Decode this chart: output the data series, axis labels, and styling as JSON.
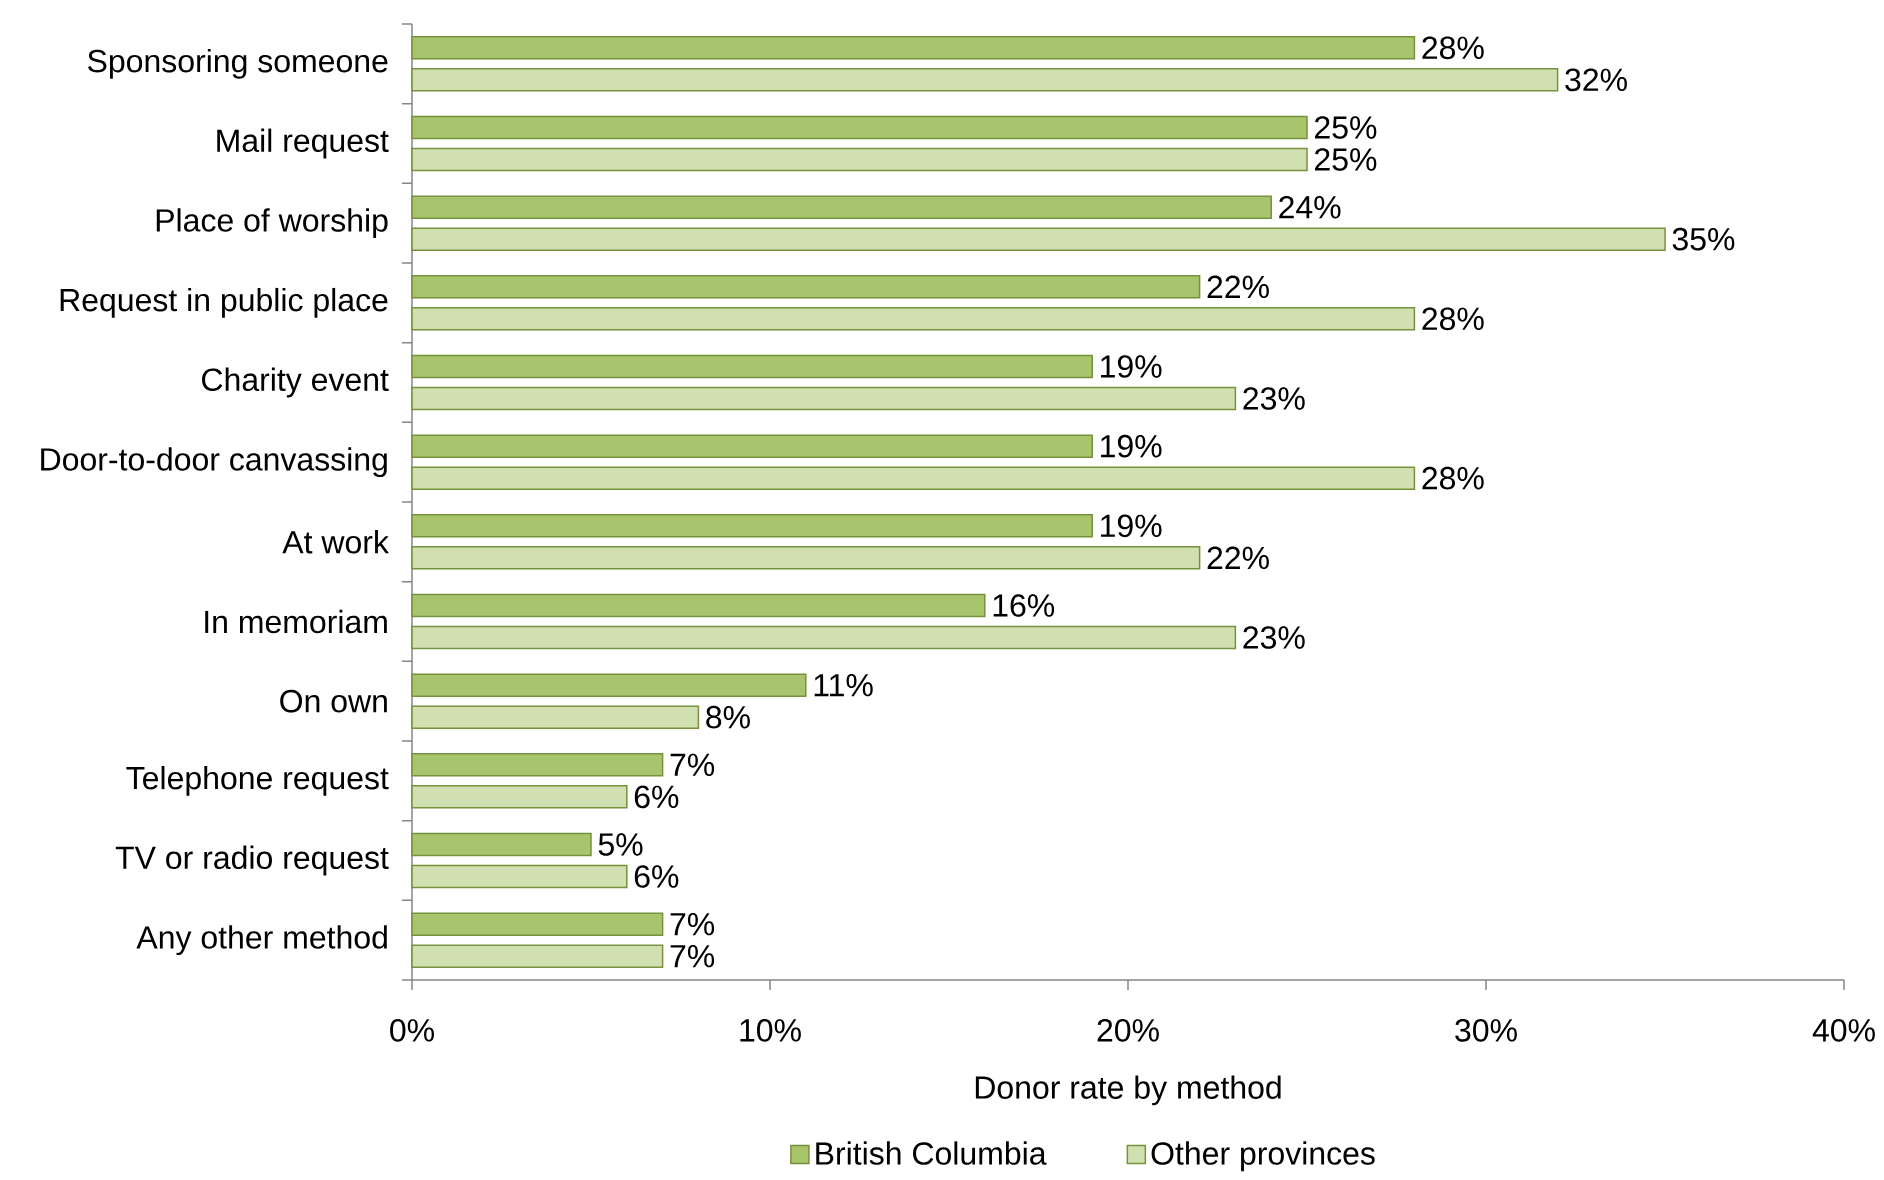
{
  "chart_data": {
    "type": "bar",
    "orientation": "horizontal",
    "xlabel": "Donor rate by method",
    "categories": [
      "Sponsoring someone",
      "Mail request",
      "Place of worship",
      "Request in public place",
      "Charity event",
      "Door-to-door canvassing",
      "At work",
      "In memoriam",
      "On own",
      "Telephone request",
      "TV or radio request",
      "Any other method"
    ],
    "series": [
      {
        "name": "British Columbia",
        "color": "#a8c46c",
        "values": [
          28,
          25,
          24,
          22,
          19,
          19,
          19,
          16,
          11,
          7,
          5,
          7
        ],
        "value_labels": [
          "28%",
          "25%",
          "24%",
          "22%",
          "19%",
          "19%",
          "19%",
          "16%",
          "11%",
          "7%",
          "5%",
          "7%"
        ]
      },
      {
        "name": "Other provinces",
        "color": "#d0e0b0",
        "values": [
          32,
          25,
          35,
          28,
          23,
          28,
          22,
          23,
          8,
          6,
          6,
          7
        ],
        "value_labels": [
          "32%",
          "25%",
          "35%",
          "28%",
          "23%",
          "28%",
          "22%",
          "23%",
          "8%",
          "6%",
          "6%",
          "7%"
        ]
      }
    ],
    "xlim": [
      0,
      40
    ],
    "xticks": [
      {
        "value": 0,
        "label": "0%"
      },
      {
        "value": 10,
        "label": "10%"
      },
      {
        "value": 20,
        "label": "20%"
      },
      {
        "value": 30,
        "label": "30%"
      },
      {
        "value": 40,
        "label": "40%"
      }
    ],
    "legend": "bottom"
  }
}
